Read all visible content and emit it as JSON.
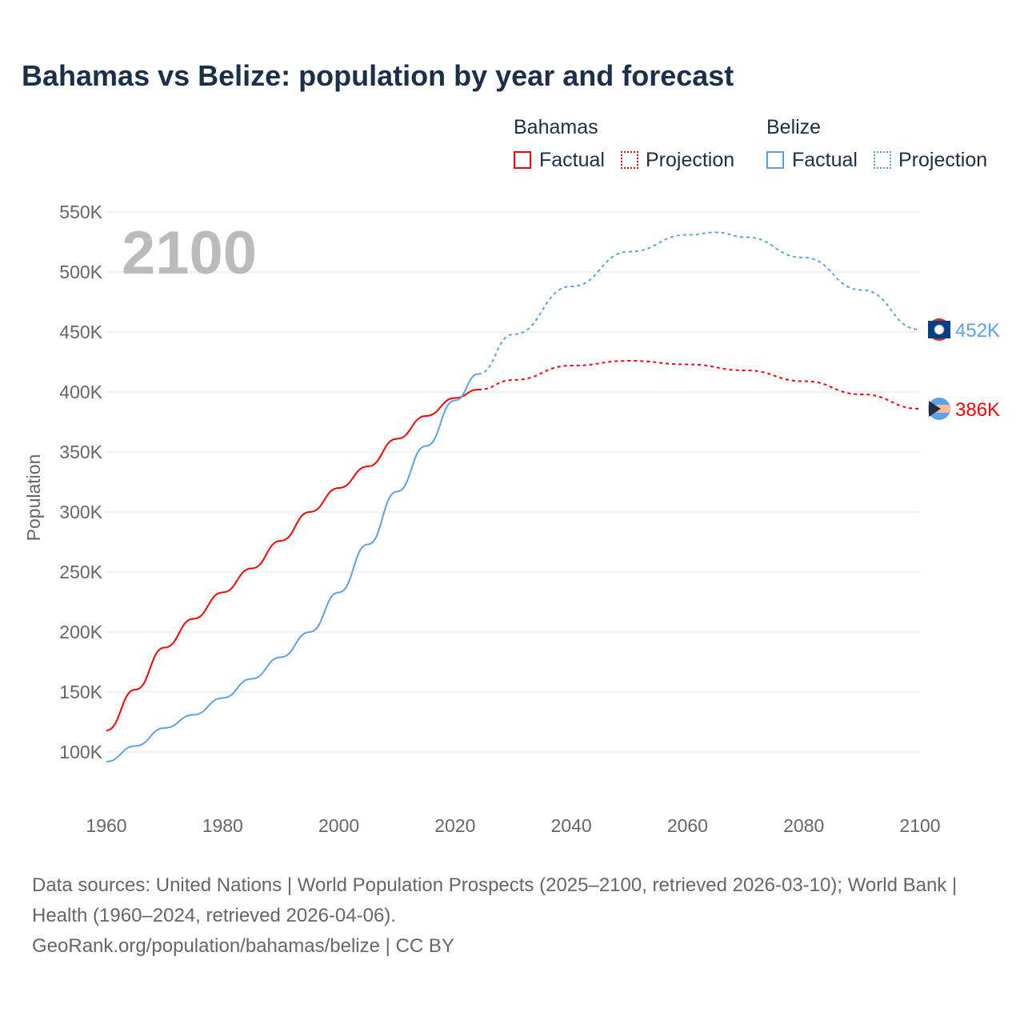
{
  "chart_data": {
    "type": "line",
    "title": "Bahamas vs Belize: population by year and forecast",
    "ylabel": "Population",
    "xlabel": "",
    "xlim": [
      1960,
      2100
    ],
    "ylim": [
      100000,
      550000
    ],
    "xticks": [
      "1960",
      "1980",
      "2000",
      "2020",
      "2040",
      "2060",
      "2080",
      "2100"
    ],
    "yticks": [
      "100K",
      "150K",
      "200K",
      "250K",
      "300K",
      "350K",
      "400K",
      "450K",
      "500K",
      "550K"
    ],
    "year_label": "2100",
    "legend": {
      "groups": [
        {
          "name": "Bahamas",
          "items": [
            "Factual",
            "Projection"
          ]
        },
        {
          "name": "Belize",
          "items": [
            "Factual",
            "Projection"
          ]
        }
      ],
      "placement": "top-right"
    },
    "series": [
      {
        "name": "Bahamas",
        "color": "#ff0000",
        "end_label": "386K",
        "factual": {
          "x": [
            1960,
            1965,
            1970,
            1975,
            1980,
            1985,
            1990,
            1995,
            2000,
            2005,
            2010,
            2015,
            2020,
            2024
          ],
          "y": [
            118000,
            152000,
            187000,
            211000,
            233000,
            253000,
            276000,
            300000,
            320000,
            338000,
            361000,
            380000,
            395000,
            402000
          ]
        },
        "projection": {
          "x": [
            2024,
            2030,
            2040,
            2050,
            2060,
            2070,
            2080,
            2090,
            2100
          ],
          "y": [
            402000,
            410000,
            422000,
            426000,
            423000,
            418000,
            409000,
            398000,
            386000
          ]
        }
      },
      {
        "name": "Belize",
        "color": "#5ba3e8",
        "end_label": "452K",
        "factual": {
          "x": [
            1960,
            1965,
            1970,
            1975,
            1980,
            1985,
            1990,
            1995,
            2000,
            2005,
            2010,
            2015,
            2020,
            2024
          ],
          "y": [
            92000,
            105000,
            120000,
            131000,
            145000,
            161000,
            179000,
            200000,
            233000,
            273000,
            317000,
            355000,
            393000,
            415000
          ]
        },
        "projection": {
          "x": [
            2024,
            2030,
            2040,
            2050,
            2060,
            2065,
            2070,
            2080,
            2090,
            2100
          ],
          "y": [
            415000,
            448000,
            488000,
            517000,
            531000,
            533000,
            529000,
            512000,
            485000,
            452000
          ]
        }
      }
    ]
  },
  "footer": {
    "sources": "Data sources: United Nations | World Population Prospects (2025–2100, retrieved 2026-03-10); World Bank | Health (1960–2024, retrieved 2026-04-06).",
    "credit": "GeoRank.org/population/bahamas/belize | CC BY"
  }
}
